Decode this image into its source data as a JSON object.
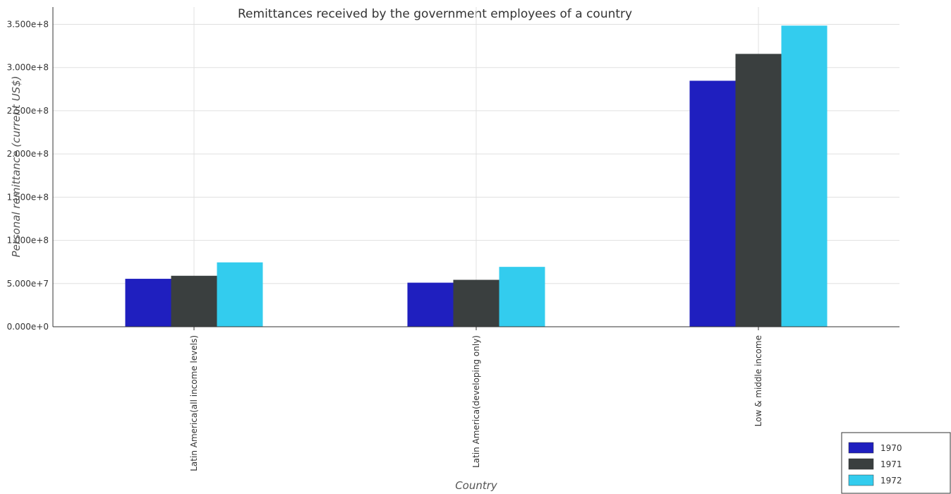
{
  "chart_data": {
    "type": "bar",
    "title": "Remittances received by the government employees of a country",
    "xlabel": "Country",
    "ylabel": "Personal remittance (current US$)",
    "categories": [
      "Latin America(all income levels)",
      "Latin America(developing only)",
      "Low & middle income"
    ],
    "series": [
      {
        "name": "1970",
        "color": "#1f1fbf",
        "values": [
          55500000,
          51000000,
          284700000
        ]
      },
      {
        "name": "1971",
        "color": "#3a3f3f",
        "values": [
          59000000,
          54300000,
          315800000
        ]
      },
      {
        "name": "1972",
        "color": "#33ccee",
        "values": [
          74500000,
          69300000,
          348500000
        ]
      }
    ],
    "ylim": [
      0,
      370000000
    ],
    "yticks": [
      0,
      50000000,
      100000000,
      150000000,
      200000000,
      250000000,
      300000000,
      350000000
    ],
    "ytick_labels": [
      "0.000e+0",
      "5.000e+7",
      "1.000e+8",
      "1.500e+8",
      "2.000e+8",
      "2.500e+8",
      "3.000e+8",
      "3.500e+8"
    ],
    "grid": true,
    "legend_position": "bottom-right"
  }
}
